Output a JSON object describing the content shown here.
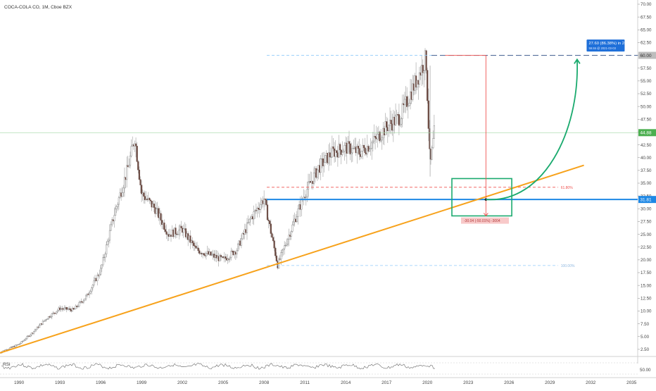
{
  "header": {
    "symbol_label": "COCA-COLA CO, 1M, Cboe BZX"
  },
  "colors": {
    "candle_up": "#26a69a",
    "candle_down": "#ef5350",
    "candle_body": "#6b4a42",
    "wick": "#9e9e9e",
    "trendline": "#f7a21b",
    "support": "#1e88e5",
    "projection_arc": "#1aaa6e",
    "box": "#1aaa6e",
    "fib_red": "#ef5350",
    "fib_blue": "#90caf9",
    "current_price": "#4caf50",
    "label_blue": "#1e6fd9",
    "rsi_line": "#666666"
  },
  "price_axis": {
    "ticks": [
      "70.00",
      "67.50",
      "65.00",
      "62.50",
      "60.00",
      "57.50",
      "55.00",
      "52.50",
      "50.00",
      "47.50",
      "45.00",
      "42.50",
      "40.00",
      "37.50",
      "35.00",
      "32.50",
      "30.00",
      "27.50",
      "25.00",
      "22.50",
      "20.00",
      "17.50",
      "15.00",
      "12.50",
      "10.00",
      "7.50",
      "5.00",
      "2.50"
    ],
    "current_price_label": "44.88",
    "support_label": "31.81",
    "top_label": "60.00"
  },
  "time_axis": {
    "ticks": [
      "1990",
      "1993",
      "1996",
      "1999",
      "2002",
      "2005",
      "2008",
      "2011",
      "2014",
      "2017",
      "2020",
      "2023",
      "2026",
      "2029",
      "2032",
      "2035"
    ]
  },
  "rsi_panel": {
    "label": "RSI",
    "tick": "50.00"
  },
  "annotations": {
    "measure_up": "27.60 (86.38%) in 2863d",
    "measure_up_sub": "59.55 @ 2021-03-03",
    "measure_down": "-30.04 (-50.01%) -3004",
    "fib_618": "61.80%",
    "fib_100": "100.00%"
  },
  "chart_data": {
    "type": "candlestick",
    "title": "COCA-COLA CO, 1M, Cboe BZX",
    "ylim": [
      0,
      71
    ],
    "xlim": [
      1988.6,
      2035.4
    ],
    "x": [
      1988.5,
      1990,
      1991,
      1992,
      1993,
      1994,
      1995,
      1996,
      1997,
      1998,
      1998.5,
      1999,
      2000,
      2001,
      2002,
      2003,
      2004,
      2005,
      2006,
      2007,
      2008,
      2009,
      2010,
      2011,
      2012,
      2013,
      2014,
      2015,
      2016,
      2017,
      2018,
      2019,
      2019.9,
      2020.2,
      2020.5
    ],
    "values": [
      1.8,
      3.5,
      5.8,
      8.5,
      10.5,
      10.2,
      13,
      18,
      29,
      38,
      44,
      33,
      30,
      25,
      26,
      22,
      21,
      20,
      22,
      28,
      32,
      19,
      26,
      33,
      38,
      41,
      42,
      41,
      43,
      46,
      48,
      54,
      59.5,
      38,
      44.88
    ],
    "current_price": 44.88,
    "support_level": 31.81,
    "fib_levels": {
      "61.80%": 34.2,
      "100.00%": 18.9
    },
    "trendline": {
      "from": [
        1988.6,
        1.8
      ],
      "to": [
        2031.5,
        38.5
      ]
    },
    "measure_up": {
      "value": "27.60 (86.38%) in 2863d"
    },
    "measure_down": {
      "value": "-30.04 (-50.01%) -3004"
    }
  }
}
